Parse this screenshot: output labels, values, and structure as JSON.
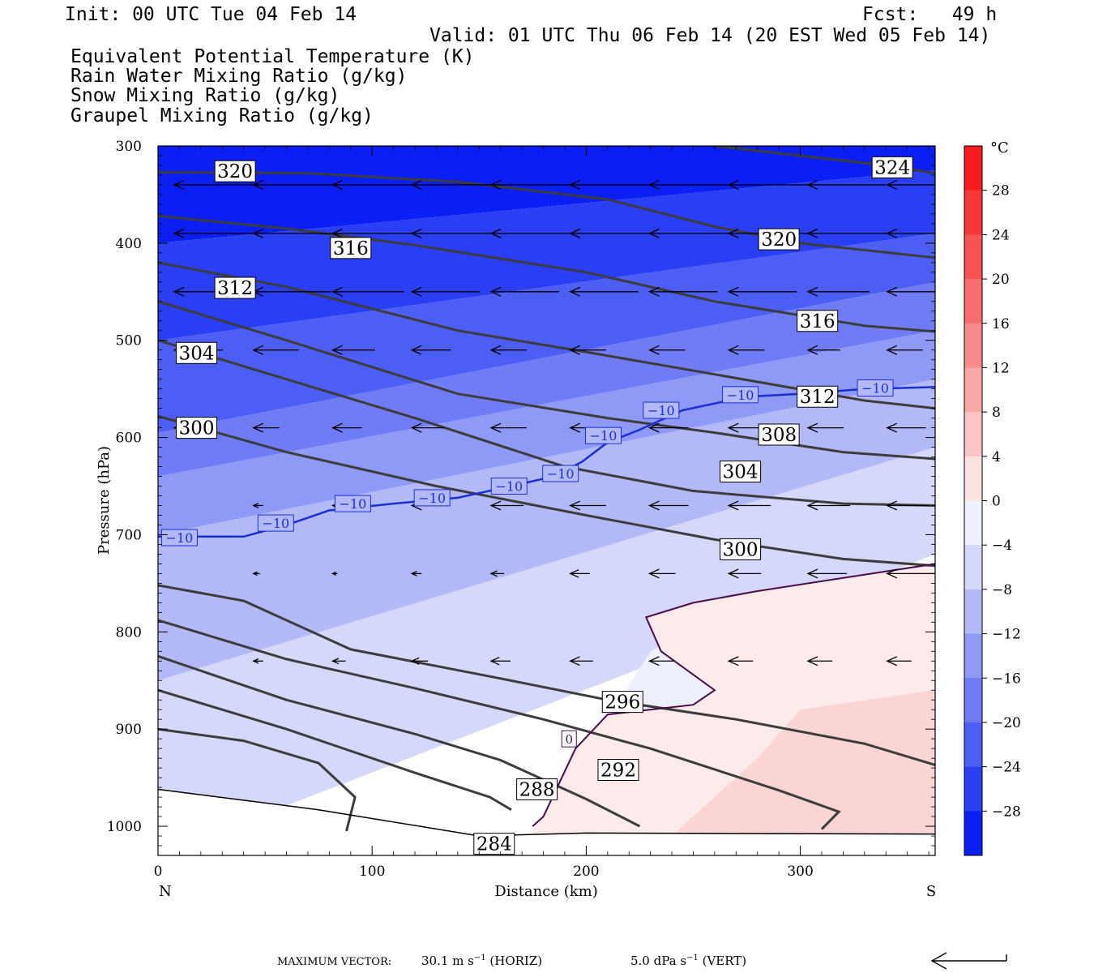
{
  "header": {
    "init": "Init: 00 UTC Tue 04 Feb 14",
    "fcst": "Fcst:   49 h",
    "valid": "Valid: 01 UTC Thu 06 Feb 14 (20 EST Wed 05 Feb 14)",
    "fields": [
      {
        "label": "Equivalent Potential Temperature (K)",
        "color": "#555555"
      },
      {
        "label": "Rain Water Mixing Ratio (g/kg)",
        "color": "#006400"
      },
      {
        "label": "Snow Mixing Ratio (g/kg)",
        "color": "#f4a460"
      },
      {
        "label": "Graupel Mixing Ratio (g/kg)",
        "color": "#ee82ee"
      }
    ]
  },
  "chart_data": {
    "type": "cross-section",
    "xlabel": "Distance (km)",
    "ylabel": "Pressure (hPa)",
    "xlim": [
      0,
      363
    ],
    "ylim": [
      300,
      1030
    ],
    "y_scale": "linear, inverted",
    "x_ticks": [
      0,
      100,
      200,
      300
    ],
    "y_ticks": [
      300,
      400,
      500,
      600,
      700,
      800,
      900,
      1000
    ],
    "endpoints": {
      "left": "N",
      "right": "S"
    },
    "colorbar": {
      "unit": "°C",
      "ticks": [
        28,
        24,
        20,
        16,
        12,
        8,
        4,
        0,
        -4,
        -8,
        -12,
        -16,
        -20,
        -24,
        -28
      ],
      "tick_labels": [
        "28",
        "24",
        "20",
        "16",
        "12",
        "8",
        "4",
        "0",
        "−4",
        "−8",
        "−12",
        "−16",
        "−20",
        "−24",
        "−28"
      ],
      "range": [
        -32,
        32
      ]
    },
    "temperature_bands": [
      {
        "band": "below -28",
        "points": [
          [
            0,
            300
          ],
          [
            363,
            300
          ],
          [
            363,
            325
          ],
          [
            0,
            400
          ]
        ]
      },
      {
        "band": "-28 to -24",
        "points": [
          [
            0,
            400
          ],
          [
            363,
            325
          ],
          [
            363,
            390
          ],
          [
            0,
            500
          ]
        ]
      },
      {
        "band": "-24 to -20",
        "points": [
          [
            0,
            500
          ],
          [
            363,
            390
          ],
          [
            363,
            440
          ],
          [
            0,
            595
          ]
        ]
      },
      {
        "band": "-20 to -16",
        "points": [
          [
            0,
            595
          ],
          [
            363,
            440
          ],
          [
            363,
            490
          ],
          [
            0,
            640
          ]
        ]
      },
      {
        "band": "-16 to -12",
        "points": [
          [
            0,
            640
          ],
          [
            363,
            490
          ],
          [
            363,
            540
          ],
          [
            0,
            700
          ]
        ]
      },
      {
        "band": "-12 to -8",
        "points": [
          [
            0,
            700
          ],
          [
            363,
            540
          ],
          [
            363,
            610
          ],
          [
            0,
            850
          ]
        ]
      },
      {
        "band": "-8 to -4",
        "points": [
          [
            0,
            850
          ],
          [
            363,
            610
          ],
          [
            363,
            720
          ],
          [
            0,
            1030
          ]
        ]
      },
      {
        "band": "-4 to 0",
        "points": [
          [
            30,
            1030
          ],
          [
            170,
            1030
          ],
          [
            230,
            820
          ],
          [
            280,
            760
          ],
          [
            363,
            730
          ],
          [
            363,
            1030
          ]
        ]
      }
    ],
    "isotherm_0C": {
      "label": "0",
      "points": [
        [
          175,
          1000
        ],
        [
          180,
          990
        ],
        [
          195,
          920
        ],
        [
          210,
          885
        ],
        [
          250,
          875
        ],
        [
          260,
          860
        ],
        [
          235,
          820
        ],
        [
          228,
          785
        ],
        [
          250,
          770
        ],
        [
          280,
          758
        ],
        [
          363,
          730
        ]
      ]
    },
    "isotherm_minus10C": {
      "label": "−10",
      "points": [
        [
          0,
          702
        ],
        [
          40,
          702
        ],
        [
          60,
          690
        ],
        [
          80,
          675
        ],
        [
          110,
          668
        ],
        [
          140,
          662
        ],
        [
          165,
          650
        ],
        [
          185,
          640
        ],
        [
          198,
          625
        ],
        [
          210,
          605
        ],
        [
          225,
          592
        ],
        [
          245,
          572
        ],
        [
          275,
          558
        ],
        [
          300,
          555
        ],
        [
          330,
          550
        ],
        [
          363,
          548
        ]
      ]
    },
    "isotherm_minus10C_labels": [
      [
        10,
        703
      ],
      [
        55,
        688
      ],
      [
        91,
        668
      ],
      [
        128,
        662
      ],
      [
        164,
        650
      ],
      [
        188,
        637
      ],
      [
        208,
        598
      ],
      [
        235,
        572
      ],
      [
        272,
        556
      ],
      [
        335,
        549
      ]
    ],
    "theta_e_contours": [
      {
        "value": 324,
        "points": [
          [
            260,
            300
          ],
          [
            300,
            310
          ],
          [
            340,
            320
          ],
          [
            363,
            328
          ]
        ],
        "label_at": [
          343,
          322
        ]
      },
      {
        "value": 320,
        "points": [
          [
            0,
            327
          ],
          [
            70,
            328
          ],
          [
            140,
            337
          ],
          [
            210,
            355
          ],
          [
            260,
            383
          ],
          [
            300,
            400
          ],
          [
            363,
            415
          ]
        ],
        "label_at": [
          36,
          326
        ]
      },
      {
        "value": 320,
        "points": [],
        "label_at": [
          290,
          396
        ]
      },
      {
        "value": 316,
        "points": [
          [
            0,
            372
          ],
          [
            60,
            385
          ],
          [
            120,
            402
          ],
          [
            200,
            430
          ],
          [
            260,
            460
          ],
          [
            330,
            485
          ],
          [
            363,
            491
          ]
        ],
        "label_at": [
          90,
          405
        ]
      },
      {
        "value": 316,
        "points": [],
        "label_at": [
          308,
          480
        ]
      },
      {
        "value": 312,
        "points": [
          [
            0,
            420
          ],
          [
            60,
            445
          ],
          [
            140,
            490
          ],
          [
            200,
            512
          ],
          [
            260,
            535
          ],
          [
            330,
            562
          ],
          [
            363,
            570
          ]
        ],
        "label_at": [
          36,
          446
        ]
      },
      {
        "value": 312,
        "points": [],
        "label_at": [
          308,
          558
        ]
      },
      {
        "value": 308,
        "points": [
          [
            0,
            460
          ],
          [
            60,
            500
          ],
          [
            140,
            555
          ],
          [
            210,
            580
          ],
          [
            260,
            595
          ],
          [
            320,
            615
          ],
          [
            363,
            622
          ]
        ],
        "label_at": [
          290,
          597
        ]
      },
      {
        "value": 304,
        "points": [
          [
            0,
            500
          ],
          [
            60,
            540
          ],
          [
            120,
            580
          ],
          [
            190,
            630
          ],
          [
            250,
            655
          ],
          [
            320,
            668
          ],
          [
            363,
            670
          ]
        ],
        "label_at": [
          18,
          513
        ]
      },
      {
        "value": 304,
        "points": [],
        "label_at": [
          272,
          635
        ]
      },
      {
        "value": 300,
        "points": [
          [
            0,
            578
          ],
          [
            60,
            615
          ],
          [
            130,
            650
          ],
          [
            200,
            680
          ],
          [
            260,
            705
          ],
          [
            320,
            725
          ],
          [
            363,
            732
          ]
        ],
        "label_at": [
          18,
          590
        ]
      },
      {
        "value": 300,
        "points": [],
        "label_at": [
          272,
          715
        ]
      },
      {
        "value": 296,
        "points": [
          [
            0,
            752
          ],
          [
            40,
            768
          ],
          [
            90,
            818
          ],
          [
            160,
            848
          ],
          [
            210,
            870
          ],
          [
            270,
            890
          ],
          [
            330,
            915
          ],
          [
            363,
            937
          ]
        ],
        "label_at": [
          217,
          872
        ]
      },
      {
        "value": 292,
        "points": [
          [
            0,
            788
          ],
          [
            60,
            828
          ],
          [
            120,
            858
          ],
          [
            180,
            890
          ],
          [
            230,
            920
          ],
          [
            290,
            963
          ],
          [
            318,
            985
          ],
          [
            310,
            1003
          ]
        ],
        "label_at": [
          215,
          942
        ]
      },
      {
        "value": 288,
        "points": [
          [
            0,
            825
          ],
          [
            60,
            870
          ],
          [
            120,
            905
          ],
          [
            160,
            932
          ],
          [
            200,
            972
          ],
          [
            225,
            1000
          ]
        ],
        "label_at": [
          177,
          962
        ]
      },
      {
        "value": 284,
        "points": [
          [
            0,
            860
          ],
          [
            60,
            900
          ],
          [
            120,
            945
          ],
          [
            155,
            970
          ],
          [
            165,
            983
          ]
        ],
        "label_at": [
          157,
          1018
        ]
      },
      {
        "value": "",
        "points": [
          [
            0,
            900
          ],
          [
            40,
            912
          ],
          [
            75,
            935
          ],
          [
            92,
            970
          ],
          [
            88,
            1005
          ]
        ],
        "label_at": null
      }
    ],
    "terrain_points": [
      [
        0,
        962
      ],
      [
        75,
        983
      ],
      [
        150,
        1010
      ],
      [
        200,
        1007
      ],
      [
        363,
        1008
      ]
    ],
    "wind_vectors": [
      {
        "p": 340,
        "x": [
          0,
          37,
          74,
          111,
          148,
          185,
          222,
          259,
          296,
          333
        ],
        "len": [
          5.5,
          5.3,
          5.2,
          5.1,
          5,
          5,
          5,
          5,
          4.8,
          4.6
        ]
      },
      {
        "p": 390,
        "x": [
          0,
          37,
          74,
          111,
          148,
          185,
          222,
          259,
          296,
          333
        ],
        "len": [
          5.4,
          5.3,
          5.2,
          5.1,
          5,
          5,
          5,
          5,
          4.9,
          4.8
        ]
      },
      {
        "p": 450,
        "x": [
          0,
          37,
          74,
          111,
          148,
          185,
          222,
          259,
          296,
          333
        ],
        "len": [
          5,
          4.8,
          4.4,
          4.2,
          4.2,
          4.2,
          4.2,
          4.2,
          3.8,
          3
        ]
      },
      {
        "p": 510,
        "x": [
          0,
          37,
          74,
          111,
          148,
          185,
          222,
          259,
          296,
          333
        ],
        "len": [
          3,
          2.8,
          2.6,
          2.4,
          2.2,
          2.2,
          2.2,
          2.2,
          2,
          2.2
        ]
      },
      {
        "p": 590,
        "x": [
          0,
          37,
          74,
          111,
          148,
          185,
          222,
          259,
          296,
          333
        ],
        "len": [
          2.6,
          1.6,
          1.8,
          2,
          2.2,
          2.4,
          2.4,
          2.4,
          2.2,
          2.4
        ]
      },
      {
        "p": 670,
        "x": [
          37,
          74,
          111,
          148,
          185,
          222,
          259,
          296,
          333
        ],
        "len": [
          0.6,
          1,
          1.6,
          2,
          2.2,
          2.4,
          2.6,
          2.6,
          2.6
        ]
      },
      {
        "p": 740,
        "x": [
          37,
          74,
          111,
          148,
          185,
          222,
          259,
          296,
          333
        ],
        "len": [
          0.4,
          0.3,
          0.6,
          0.8,
          1.2,
          1.6,
          2,
          2.4,
          3
        ]
      },
      {
        "p": 830,
        "x": [
          37,
          74,
          111,
          148,
          185,
          222,
          259,
          296,
          333
        ],
        "len": [
          0.6,
          0.8,
          1,
          1.2,
          1.4,
          1.5,
          1.5,
          1.5,
          1.5
        ]
      }
    ],
    "footer": {
      "max_vector_label": "MAXIMUM VECTOR:",
      "horiz": "30.1 m s",
      "horiz_exp": "−1",
      "horiz_tag": "(HORIZ)",
      "vert": "5.0 dPa s",
      "vert_exp": "−1",
      "vert_tag": "(VERT)"
    }
  }
}
